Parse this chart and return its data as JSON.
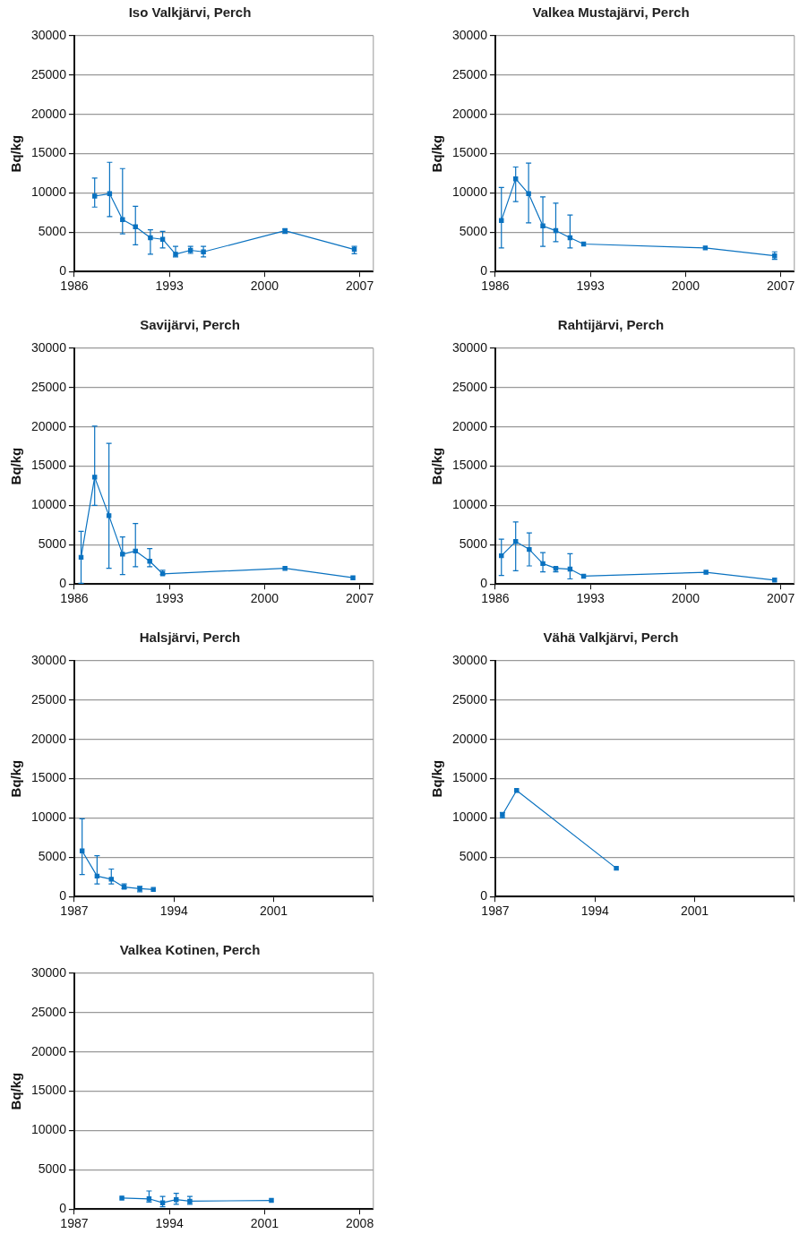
{
  "chart_data": [
    {
      "type": "line",
      "title": "Iso Valkjärvi, Perch",
      "ylabel": "Bq/kg",
      "color": "#0a72c0",
      "marker": "square",
      "grid": "y",
      "xlim": [
        1986,
        2008
      ],
      "xticks": [
        1986,
        1993,
        2000,
        2007
      ],
      "ylim": [
        0,
        30000
      ],
      "yticks": [
        0,
        5000,
        10000,
        15000,
        20000,
        25000,
        30000
      ],
      "x": [
        1987.5,
        1988.6,
        1989.55,
        1990.5,
        1991.6,
        1992.5,
        1993.45,
        1994.55,
        1995.5,
        2001.5,
        2006.6
      ],
      "values": [
        9600,
        9900,
        6600,
        5700,
        4300,
        4100,
        2200,
        2700,
        2500,
        5200,
        2800
      ],
      "errors": [
        [
          8200,
          11900
        ],
        [
          7000,
          13900
        ],
        [
          4800,
          13100
        ],
        [
          3400,
          8300
        ],
        [
          2200,
          5300
        ],
        [
          3000,
          5100
        ],
        [
          1850,
          3200
        ],
        [
          2300,
          3200
        ],
        [
          1850,
          3200
        ],
        [
          4850,
          5400
        ],
        [
          2250,
          3200
        ]
      ]
    },
    {
      "type": "line",
      "title": "Valkea Mustajärvi, Perch",
      "ylabel": "Bq/kg",
      "color": "#0a72c0",
      "marker": "square",
      "grid": "y",
      "xlim": [
        1986,
        2008
      ],
      "xticks": [
        1986,
        1993,
        2000,
        2007
      ],
      "ylim": [
        0,
        30000
      ],
      "yticks": [
        0,
        5000,
        10000,
        15000,
        20000,
        25000,
        30000
      ],
      "x": [
        1986.45,
        1987.5,
        1988.45,
        1989.5,
        1990.45,
        1991.5,
        1992.5,
        2001.45,
        2006.55
      ],
      "values": [
        6500,
        11800,
        9900,
        5800,
        5200,
        4300,
        3500,
        3000,
        2000
      ],
      "errors": [
        [
          3000,
          10700
        ],
        [
          8900,
          13300
        ],
        [
          6200,
          13800
        ],
        [
          3200,
          9500
        ],
        [
          3800,
          8700
        ],
        [
          3000,
          7200
        ],
        null,
        null,
        [
          1550,
          2500
        ]
      ]
    },
    {
      "type": "line",
      "title": "Savijärvi, Perch",
      "ylabel": "Bq/kg",
      "color": "#0a72c0",
      "marker": "square",
      "grid": "y",
      "xlim": [
        1986,
        2008
      ],
      "xticks": [
        1986,
        1993,
        2000,
        2007
      ],
      "ylim": [
        0,
        30000
      ],
      "yticks": [
        0,
        5000,
        10000,
        15000,
        20000,
        25000,
        30000
      ],
      "x": [
        1986.5,
        1987.5,
        1988.55,
        1989.55,
        1990.5,
        1991.55,
        1992.5,
        2001.5,
        2006.5
      ],
      "values": [
        3400,
        13600,
        8700,
        3800,
        4200,
        2900,
        1300,
        2000,
        800
      ],
      "errors": [
        [
          100,
          6700
        ],
        [
          10000,
          20100
        ],
        [
          2000,
          17900
        ],
        [
          1200,
          6000
        ],
        [
          2200,
          7700
        ],
        [
          2200,
          4500
        ],
        [
          1200,
          1750
        ],
        null,
        null
      ]
    },
    {
      "type": "line",
      "title": "Rahtijärvi, Perch",
      "ylabel": "Bq/kg",
      "color": "#0a72c0",
      "marker": "square",
      "grid": "y",
      "xlim": [
        1986,
        2008
      ],
      "xticks": [
        1986,
        1993,
        2000,
        2007
      ],
      "ylim": [
        0,
        30000
      ],
      "yticks": [
        0,
        5000,
        10000,
        15000,
        20000,
        25000,
        30000
      ],
      "x": [
        1986.45,
        1987.5,
        1988.5,
        1989.5,
        1990.45,
        1991.5,
        1992.5,
        2001.5,
        2006.55
      ],
      "values": [
        3600,
        5400,
        4400,
        2600,
        2000,
        1900,
        1000,
        1500,
        500
      ],
      "errors": [
        [
          1100,
          5700
        ],
        [
          1700,
          7900
        ],
        [
          2300,
          6500
        ],
        [
          1550,
          4000
        ],
        [
          1550,
          2100
        ],
        [
          650,
          3850
        ],
        null,
        null,
        null
      ]
    },
    {
      "type": "line",
      "title": "Halsjärvi, Perch",
      "ylabel": "Bq/kg",
      "color": "#0a72c0",
      "marker": "square",
      "grid": "y",
      "xlim": [
        1987,
        2008
      ],
      "xticks": [
        1987,
        1994,
        2001,
        {
          "value": 2008,
          "label": null
        }
      ],
      "ylim": [
        0,
        30000
      ],
      "yticks": [
        0,
        5000,
        10000,
        15000,
        20000,
        25000,
        30000
      ],
      "x": [
        1987.55,
        1988.6,
        1989.6,
        1990.5,
        1991.6,
        1992.55
      ],
      "values": [
        5800,
        2600,
        2200,
        1200,
        1000,
        900
      ],
      "errors": [
        [
          2800,
          9900
        ],
        [
          1600,
          5200
        ],
        [
          1600,
          3500
        ],
        [
          1000,
          1600
        ],
        [
          600,
          1300
        ],
        null
      ]
    },
    {
      "type": "line",
      "title": "Vähä Valkjärvi, Perch",
      "ylabel": "Bq/kg",
      "color": "#0a72c0",
      "marker": "square",
      "grid": "y",
      "xlim": [
        1987,
        2008
      ],
      "xticks": [
        1987,
        1994,
        2001,
        {
          "value": 2008,
          "label": null
        }
      ],
      "ylim": [
        0,
        30000
      ],
      "yticks": [
        0,
        5000,
        10000,
        15000,
        20000,
        25000,
        30000
      ],
      "x": [
        1987.5,
        1988.5,
        1995.5
      ],
      "values": [
        10400,
        13500,
        3600
      ],
      "errors": [
        [
          10000,
          10700
        ],
        null,
        null
      ]
    },
    {
      "type": "line",
      "title": "Valkea Kotinen, Perch",
      "ylabel": "Bq/kg",
      "color": "#0a72c0",
      "marker": "square",
      "grid": "y",
      "xlim": [
        1987,
        2009
      ],
      "xticks": [
        1987,
        1994,
        2001,
        2008
      ],
      "ylim": [
        0,
        30000
      ],
      "yticks": [
        0,
        5000,
        10000,
        15000,
        20000,
        25000,
        30000
      ],
      "x": [
        1990.5,
        1992.5,
        1993.5,
        1994.5,
        1995.5,
        2001.5
      ],
      "values": [
        1400,
        1300,
        800,
        1200,
        1000,
        1100
      ],
      "errors": [
        null,
        [
          900,
          2300
        ],
        [
          300,
          1600
        ],
        [
          600,
          2000
        ],
        [
          600,
          1600
        ],
        null
      ]
    }
  ]
}
